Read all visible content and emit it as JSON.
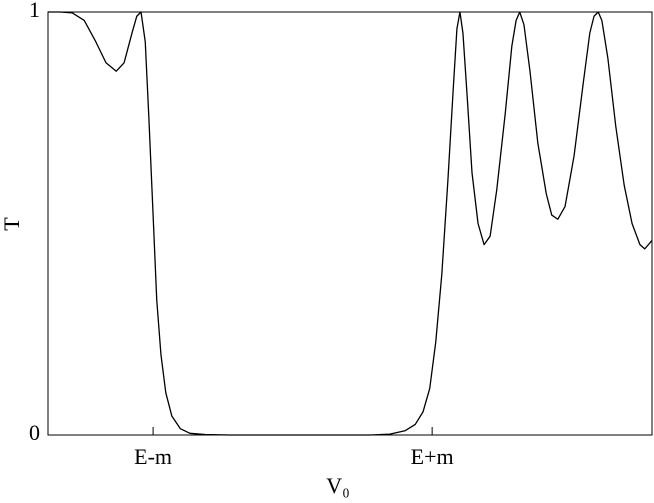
{
  "chart_data": {
    "type": "line",
    "xlabel": "V₀",
    "ylabel": "T",
    "x": [
      0,
      2.0,
      4.0,
      6.0,
      7.9,
      9.6,
      11.3,
      12.6,
      13.9,
      14.7,
      15.4,
      16.1,
      16.7,
      17.4,
      18.0,
      18.7,
      19.5,
      20.5,
      21.9,
      23.5,
      26.0,
      30.1,
      41.7,
      53.3,
      56.6,
      59.1,
      60.8,
      62.1,
      63.2,
      64.2,
      65.2,
      66.2,
      67.1,
      67.7,
      68.2,
      68.7,
      69.4,
      70.2,
      71.2,
      72.2,
      73.2,
      74.3,
      75.7,
      76.8,
      77.5,
      78.1,
      78.8,
      79.8,
      81.1,
      82.5,
      83.4,
      84.4,
      85.6,
      87.1,
      88.6,
      89.7,
      90.4,
      91.1,
      91.7,
      92.7,
      94.0,
      95.4,
      96.7,
      98.0,
      98.8,
      100
    ],
    "series": [
      {
        "color": "#000000",
        "values": [
          1.0,
          1.0,
          0.998,
          0.98,
          0.93,
          0.88,
          0.86,
          0.88,
          0.95,
          0.99,
          1.0,
          0.93,
          0.75,
          0.52,
          0.32,
          0.19,
          0.1,
          0.045,
          0.015,
          0.004,
          0.001,
          0.0,
          0.0,
          0.0,
          0.002,
          0.01,
          0.025,
          0.055,
          0.11,
          0.22,
          0.38,
          0.6,
          0.82,
          0.96,
          1.0,
          0.95,
          0.8,
          0.62,
          0.5,
          0.45,
          0.47,
          0.58,
          0.76,
          0.92,
          0.98,
          1.0,
          0.97,
          0.86,
          0.69,
          0.57,
          0.52,
          0.51,
          0.54,
          0.66,
          0.83,
          0.95,
          0.99,
          1.0,
          0.98,
          0.89,
          0.73,
          0.59,
          0.5,
          0.45,
          0.44,
          0.46
        ]
      }
    ],
    "xlim": [
      0,
      100
    ],
    "ylim": [
      0,
      1
    ],
    "xticks": [
      {
        "value": 17.4,
        "label": "E-m"
      },
      {
        "value": 63.6,
        "label": "E+m"
      }
    ],
    "yticks": [
      0,
      1
    ]
  }
}
